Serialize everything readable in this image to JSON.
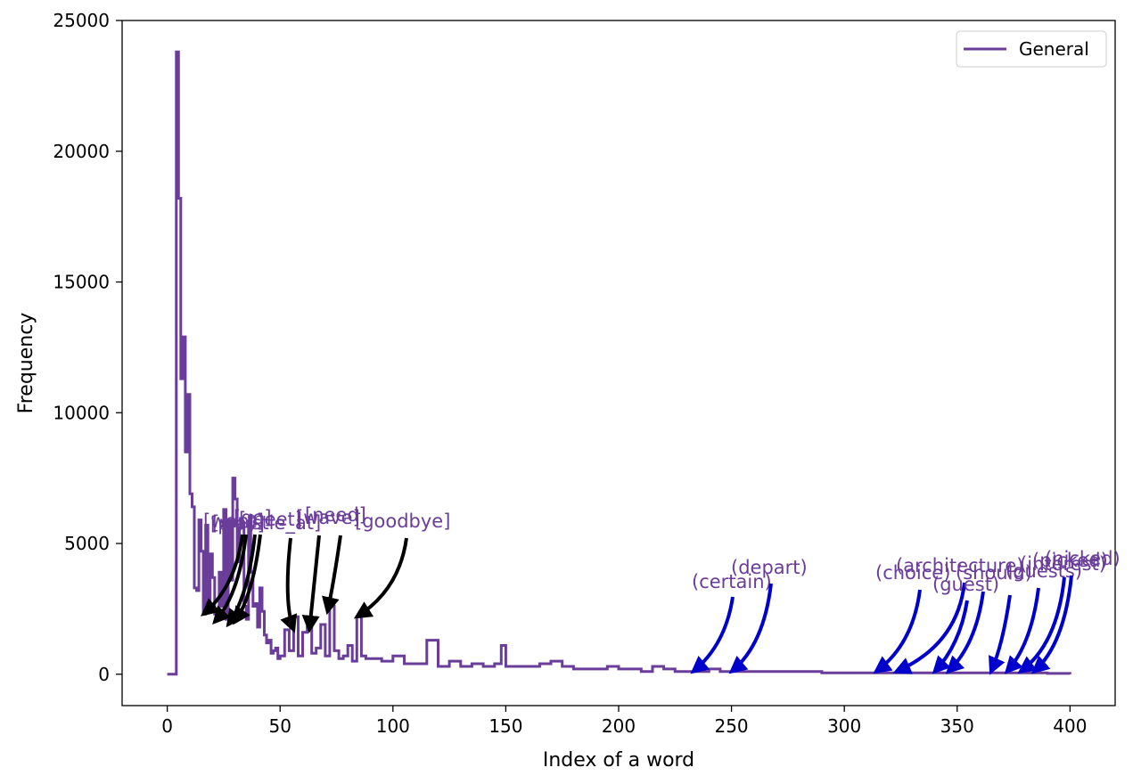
{
  "chart_data": {
    "type": "line",
    "title": "",
    "xlabel": "Index of a word",
    "ylabel": "Frequency",
    "xlim": [
      -20,
      420
    ],
    "ylim": [
      -1200,
      25000
    ],
    "xticks": [
      0,
      50,
      100,
      150,
      200,
      250,
      300,
      350,
      400
    ],
    "yticks": [
      0,
      5000,
      10000,
      15000,
      20000,
      25000
    ],
    "grid": false,
    "legend": {
      "position": "top-right",
      "entries": [
        "General"
      ]
    },
    "series": [
      {
        "name": "General",
        "color": "#6a3d9a",
        "step": "post",
        "x": [
          0,
          1,
          2,
          3,
          4,
          5,
          6,
          7,
          8,
          9,
          10,
          11,
          12,
          13,
          14,
          15,
          16,
          17,
          18,
          19,
          20,
          21,
          22,
          23,
          24,
          25,
          26,
          27,
          28,
          29,
          30,
          31,
          32,
          33,
          34,
          35,
          36,
          37,
          38,
          39,
          40,
          41,
          42,
          43,
          44,
          45,
          46,
          47,
          48,
          49,
          50,
          52,
          54,
          56,
          58,
          60,
          62,
          64,
          66,
          68,
          70,
          72,
          74,
          76,
          78,
          80,
          82,
          84,
          86,
          88,
          90,
          95,
          100,
          105,
          110,
          115,
          120,
          125,
          130,
          135,
          140,
          145,
          148,
          150,
          155,
          160,
          165,
          170,
          175,
          180,
          185,
          190,
          195,
          200,
          205,
          210,
          215,
          220,
          225,
          230,
          235,
          240,
          245,
          250,
          260,
          270,
          280,
          290,
          300,
          310,
          320,
          330,
          340,
          350,
          360,
          370,
          380,
          390,
          400
        ],
        "y": [
          0,
          0,
          0,
          0,
          23800,
          18200,
          11300,
          12900,
          8500,
          10700,
          6900,
          6400,
          3300,
          3200,
          5900,
          4700,
          2300,
          5700,
          2700,
          4600,
          3700,
          2300,
          2500,
          3900,
          2600,
          6300,
          2100,
          5900,
          3600,
          7500,
          6700,
          4300,
          5600,
          5800,
          2600,
          2100,
          5700,
          3900,
          2600,
          2700,
          1800,
          3300,
          2400,
          1500,
          1200,
          1300,
          800,
          900,
          1000,
          600,
          700,
          1700,
          900,
          2200,
          700,
          1600,
          1800,
          800,
          1000,
          1900,
          700,
          2600,
          900,
          600,
          700,
          1100,
          500,
          2200,
          700,
          600,
          600,
          500,
          700,
          400,
          400,
          1300,
          300,
          500,
          300,
          400,
          300,
          400,
          1100,
          300,
          300,
          300,
          400,
          500,
          300,
          200,
          200,
          200,
          300,
          200,
          200,
          100,
          300,
          200,
          100,
          100,
          100,
          200,
          100,
          100,
          100,
          100,
          100,
          50,
          50,
          50,
          50,
          50,
          50,
          50,
          50,
          50,
          50,
          30,
          0
        ]
      }
    ],
    "annotations": [
      {
        "text": "[want]",
        "target": [
          16,
          2300
        ],
        "color": "#000000",
        "group": "black"
      },
      {
        "text": "[play]",
        "target": [
          21,
          2000
        ],
        "color": "#000000",
        "group": "black"
      },
      {
        "text": "[go]",
        "target": [
          27,
          1900
        ],
        "color": "#000000",
        "group": "black"
      },
      {
        "text": "[meet]",
        "target": [
          30,
          2000
        ],
        "color": "#000000",
        "group": "black"
      },
      {
        "text": "[whistle_at]",
        "target": [
          56,
          1700
        ],
        "color": "#000000",
        "group": "black"
      },
      {
        "text": "[wave]",
        "target": [
          63,
          1700
        ],
        "color": "#000000",
        "group": "black"
      },
      {
        "text": "[need]",
        "target": [
          71,
          2400
        ],
        "color": "#000000",
        "group": "black"
      },
      {
        "text": "[goodbye]",
        "target": [
          84,
          2200
        ],
        "color": "#000000",
        "group": "black"
      },
      {
        "text": "(certain)",
        "target": [
          233,
          100
        ],
        "color": "#0000cc",
        "group": "blue"
      },
      {
        "text": "(depart)",
        "target": [
          250,
          100
        ],
        "color": "#0000cc",
        "group": "blue"
      },
      {
        "text": "(choice)",
        "target": [
          314,
          100
        ],
        "color": "#0000cc",
        "group": "blue"
      },
      {
        "text": "(architecture)",
        "target": [
          323,
          100
        ],
        "color": "#0000cc",
        "group": "blue"
      },
      {
        "text": "(guest)",
        "target": [
          340,
          100
        ],
        "color": "#0000cc",
        "group": "blue"
      },
      {
        "text": "(should)",
        "target": [
          346,
          100
        ],
        "color": "#0000cc",
        "group": "blue"
      },
      {
        "text": "(guests)",
        "target": [
          365,
          100
        ],
        "color": "#0000cc",
        "group": "blue"
      },
      {
        "text": "(interest)",
        "target": [
          372,
          100
        ],
        "color": "#0000cc",
        "group": "blue"
      },
      {
        "text": "(picked)",
        "target": [
          378,
          100
        ],
        "color": "#0000cc",
        "group": "blue"
      },
      {
        "text": "(nicked)",
        "target": [
          384,
          100
        ],
        "color": "#0000cc",
        "group": "blue"
      }
    ]
  }
}
